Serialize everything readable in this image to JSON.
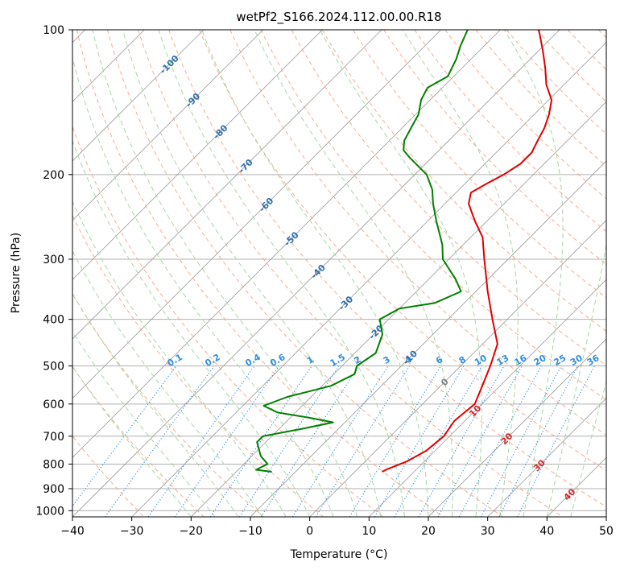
{
  "chart_data": {
    "type": "line",
    "title": "wetPf2_S166.2024.112.00.00.R18",
    "xlabel": "Temperature (°C)",
    "ylabel": "Pressure (hPa)",
    "xlim": [
      -40,
      50
    ],
    "ylim": [
      1030,
      100
    ],
    "y_scale": "log",
    "grid": true,
    "x_ticks": [
      -40,
      -30,
      -20,
      -10,
      0,
      10,
      20,
      30,
      40,
      50
    ],
    "y_ticks": [
      100,
      200,
      300,
      400,
      500,
      600,
      700,
      800,
      900,
      1000
    ],
    "colors": {
      "temperature": "#e00000",
      "dewpoint": "#008000",
      "dry_adiabat": "#f4a582",
      "moist_adiabat": "#a6d8a6",
      "mixing_ratio": "#2f8fe0",
      "isotherm": "#999999"
    },
    "isotherm_labels": [
      {
        "text": "-100",
        "p": 118
      },
      {
        "text": "-90",
        "p": 140
      },
      {
        "text": "-80",
        "p": 163
      },
      {
        "text": "-70",
        "p": 192
      },
      {
        "text": "-60",
        "p": 231
      },
      {
        "text": "-50",
        "p": 272
      },
      {
        "text": "-40",
        "p": 318
      },
      {
        "text": "-30",
        "p": 370
      },
      {
        "text": "-20",
        "p": 425
      },
      {
        "text": "-10",
        "p": 480
      },
      {
        "text": "0",
        "p": 540
      },
      {
        "text": "10",
        "p": 620
      },
      {
        "text": "20",
        "p": 708
      },
      {
        "text": "30",
        "p": 805
      },
      {
        "text": "40",
        "p": 925
      }
    ],
    "mixing_ratio_labels": [
      "0.1",
      "0.2",
      "0.4",
      "0.6",
      "1",
      "1.5",
      "2",
      "3",
      "4",
      "6",
      "8",
      "10",
      "13",
      "16",
      "20",
      "25",
      "30",
      "36"
    ],
    "series": [
      {
        "name": "",
        "role": "temperature",
        "points": [
          {
            "p": 830,
            "t": 4.6
          },
          {
            "p": 820,
            "t": 5.0
          },
          {
            "p": 790,
            "t": 7.0
          },
          {
            "p": 750,
            "t": 8.5
          },
          {
            "p": 700,
            "t": 9.0
          },
          {
            "p": 650,
            "t": 8.2
          },
          {
            "p": 600,
            "t": 8.8
          },
          {
            "p": 550,
            "t": 7.0
          },
          {
            "p": 500,
            "t": 5.0
          },
          {
            "p": 450,
            "t": 2.5
          },
          {
            "p": 400,
            "t": -2.5
          },
          {
            "p": 350,
            "t": -8.0
          },
          {
            "p": 300,
            "t": -14.0
          },
          {
            "p": 270,
            "t": -18.0
          },
          {
            "p": 250,
            "t": -22.0
          },
          {
            "p": 230,
            "t": -26.0
          },
          {
            "p": 218,
            "t": -27.5
          },
          {
            "p": 210,
            "t": -26.5
          },
          {
            "p": 200,
            "t": -25.0
          },
          {
            "p": 190,
            "t": -24.0
          },
          {
            "p": 180,
            "t": -24.0
          },
          {
            "p": 170,
            "t": -25.0
          },
          {
            "p": 160,
            "t": -26.0
          },
          {
            "p": 150,
            "t": -27.5
          },
          {
            "p": 140,
            "t": -29.5
          },
          {
            "p": 130,
            "t": -33.0
          },
          {
            "p": 120,
            "t": -36.0
          },
          {
            "p": 110,
            "t": -39.5
          },
          {
            "p": 100,
            "t": -43.5
          }
        ]
      },
      {
        "name": "",
        "role": "dewpoint",
        "points": [
          {
            "p": 830,
            "t": -14.0
          },
          {
            "p": 822,
            "t": -17.0
          },
          {
            "p": 800,
            "t": -16.0
          },
          {
            "p": 770,
            "t": -18.5
          },
          {
            "p": 720,
            "t": -21.5
          },
          {
            "p": 700,
            "t": -21.5
          },
          {
            "p": 675,
            "t": -16.0
          },
          {
            "p": 655,
            "t": -12.0
          },
          {
            "p": 640,
            "t": -17.0
          },
          {
            "p": 625,
            "t": -23.0
          },
          {
            "p": 605,
            "t": -26.5
          },
          {
            "p": 580,
            "t": -24.0
          },
          {
            "p": 550,
            "t": -18.5
          },
          {
            "p": 520,
            "t": -16.5
          },
          {
            "p": 500,
            "t": -17.5
          },
          {
            "p": 470,
            "t": -16.5
          },
          {
            "p": 430,
            "t": -18.5
          },
          {
            "p": 400,
            "t": -21.5
          },
          {
            "p": 380,
            "t": -20.0
          },
          {
            "p": 370,
            "t": -15.0
          },
          {
            "p": 350,
            "t": -12.5
          },
          {
            "p": 330,
            "t": -15.5
          },
          {
            "p": 300,
            "t": -21.0
          },
          {
            "p": 280,
            "t": -23.5
          },
          {
            "p": 250,
            "t": -28.5
          },
          {
            "p": 230,
            "t": -32.0
          },
          {
            "p": 215,
            "t": -34.5
          },
          {
            "p": 200,
            "t": -38.0
          },
          {
            "p": 185,
            "t": -43.5
          },
          {
            "p": 178,
            "t": -46.0
          },
          {
            "p": 170,
            "t": -47.5
          },
          {
            "p": 160,
            "t": -48.5
          },
          {
            "p": 150,
            "t": -49.5
          },
          {
            "p": 140,
            "t": -51.5
          },
          {
            "p": 132,
            "t": -52.5
          },
          {
            "p": 125,
            "t": -51.0
          },
          {
            "p": 115,
            "t": -52.5
          },
          {
            "p": 108,
            "t": -54.0
          },
          {
            "p": 100,
            "t": -55.5
          }
        ]
      }
    ]
  }
}
